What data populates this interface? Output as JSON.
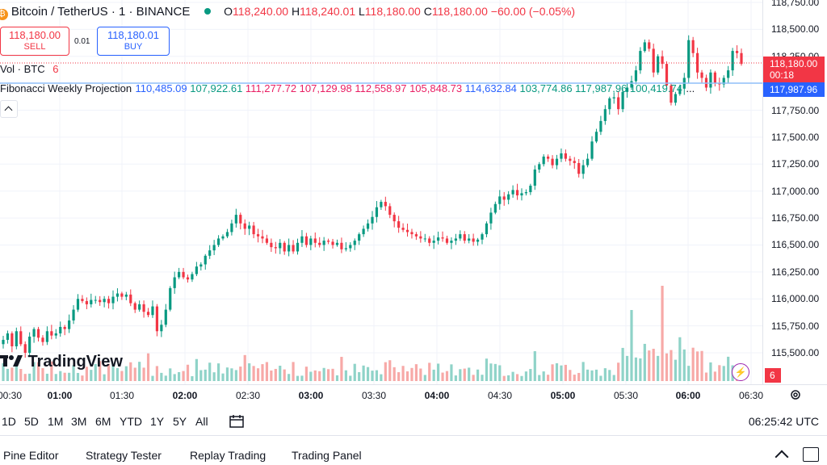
{
  "header": {
    "symbol": "Bitcoin / TetherUS · 1 · BINANCE",
    "open_label": "O",
    "open": "118,240.00",
    "high_label": "H",
    "high": "118,240.01",
    "low_label": "L",
    "low": "118,180.00",
    "close_label": "C",
    "close": "118,180.00",
    "change": "−60.00 (−0.05%)"
  },
  "trade": {
    "sell_price": "118,180.00",
    "sell_label": "SELL",
    "spread": "0.01",
    "buy_price": "118,180.01",
    "buy_label": "BUY"
  },
  "indicators": {
    "vol_label": "Vol · BTC",
    "vol_value": "6",
    "fib_label": "Fibonacci Weekly Projection",
    "fib_values": [
      "110,485.09",
      "107,922.61",
      "111,277.72",
      "107,129.98",
      "112,558.97",
      "105,848.73",
      "114,632.84",
      "103,774.86",
      "117,987.96",
      "100,419.74"
    ],
    "fib_colors": [
      "#2962ff",
      "#089981",
      "#e91e63",
      "#e91e63",
      "#e91e63",
      "#e91e63",
      "#2962ff",
      "#089981",
      "#089981",
      "#089981"
    ],
    "more": "..."
  },
  "price_axis": {
    "labels": [
      "118,750.00",
      "118,500.00",
      "118,250.00",
      "118,000.00",
      "117,750.00",
      "117,500.00",
      "117,250.00",
      "117,000.00",
      "116,750.00",
      "116,500.00",
      "116,250.00",
      "116,000.00",
      "115,750.00",
      "115,500.00"
    ],
    "current_price": "118,180.00",
    "countdown": "00:18",
    "fib_tag": "117,987.96",
    "vol_tag": "6"
  },
  "time_axis": [
    "00:30",
    "01:00",
    "01:30",
    "02:00",
    "02:30",
    "03:00",
    "03:30",
    "04:00",
    "04:30",
    "05:00",
    "05:30",
    "06:00",
    "06:30"
  ],
  "logo": "TradingView",
  "timeframes": [
    "1D",
    "5D",
    "1M",
    "3M",
    "6M",
    "YTD",
    "1Y",
    "5Y",
    "All"
  ],
  "clock": "06:25:42 UTC",
  "footer_tabs": [
    "Pine Editor",
    "Strategy Tester",
    "Replay Trading",
    "Trading Panel"
  ],
  "colors": {
    "up": "#089981",
    "down": "#f23645",
    "vol_up": "#8fd3c8",
    "vol_down": "#f7a9a7",
    "fib_line": "#90bff9"
  },
  "chart_data": {
    "type": "candlestick",
    "x_range": [
      "00:30",
      "06:30"
    ],
    "ylim": [
      115400,
      118800
    ],
    "close_path": [
      115620,
      115680,
      115560,
      115700,
      115580,
      115500,
      115650,
      115720,
      115640,
      115600,
      115700,
      115660,
      115680,
      115740,
      115720,
      115800,
      115900,
      116000,
      115980,
      115950,
      115990,
      115990,
      115970,
      116000,
      115960,
      116020,
      116050,
      116020,
      116040,
      115960,
      115900,
      115950,
      115880,
      115850,
      115930,
      115700,
      115760,
      115900,
      116100,
      116200,
      116250,
      116200,
      116180,
      116230,
      116300,
      116320,
      116400,
      116450,
      116500,
      116560,
      116580,
      116620,
      116700,
      116780,
      116700,
      116650,
      116680,
      116600,
      116580,
      116560,
      116520,
      116480,
      116470,
      116520,
      116440,
      116500,
      116440,
      116520,
      116580,
      116500,
      116560,
      116520,
      116500,
      116540,
      116530,
      116500,
      116520,
      116460,
      116470,
      116500,
      116540,
      116600,
      116650,
      116700,
      116760,
      116850,
      116900,
      116860,
      116780,
      116720,
      116660,
      116640,
      116620,
      116600,
      116580,
      116560,
      116560,
      116520,
      116540,
      116570,
      116560,
      116520,
      116540,
      116560,
      116600,
      116540,
      116560,
      116530,
      116550,
      116600,
      116700,
      116800,
      116880,
      116950,
      116920,
      116970,
      117010,
      116960,
      116980,
      116990,
      117050,
      117200,
      117250,
      117320,
      117300,
      117240,
      117300,
      117350,
      117300,
      117280,
      117260,
      117160,
      117240,
      117300,
      117460,
      117550,
      117650,
      117760,
      117860,
      117870,
      117760,
      117920,
      117960,
      118020,
      118120,
      118300,
      118380,
      118320,
      118100,
      118250,
      118180,
      117980,
      117820,
      117900,
      117950,
      118050,
      118400,
      118280,
      118100,
      118050,
      117960,
      118100,
      118000,
      117990,
      118050,
      118120,
      118300,
      118280,
      118180
    ],
    "volume_scale": [
      0,
      6
    ]
  }
}
